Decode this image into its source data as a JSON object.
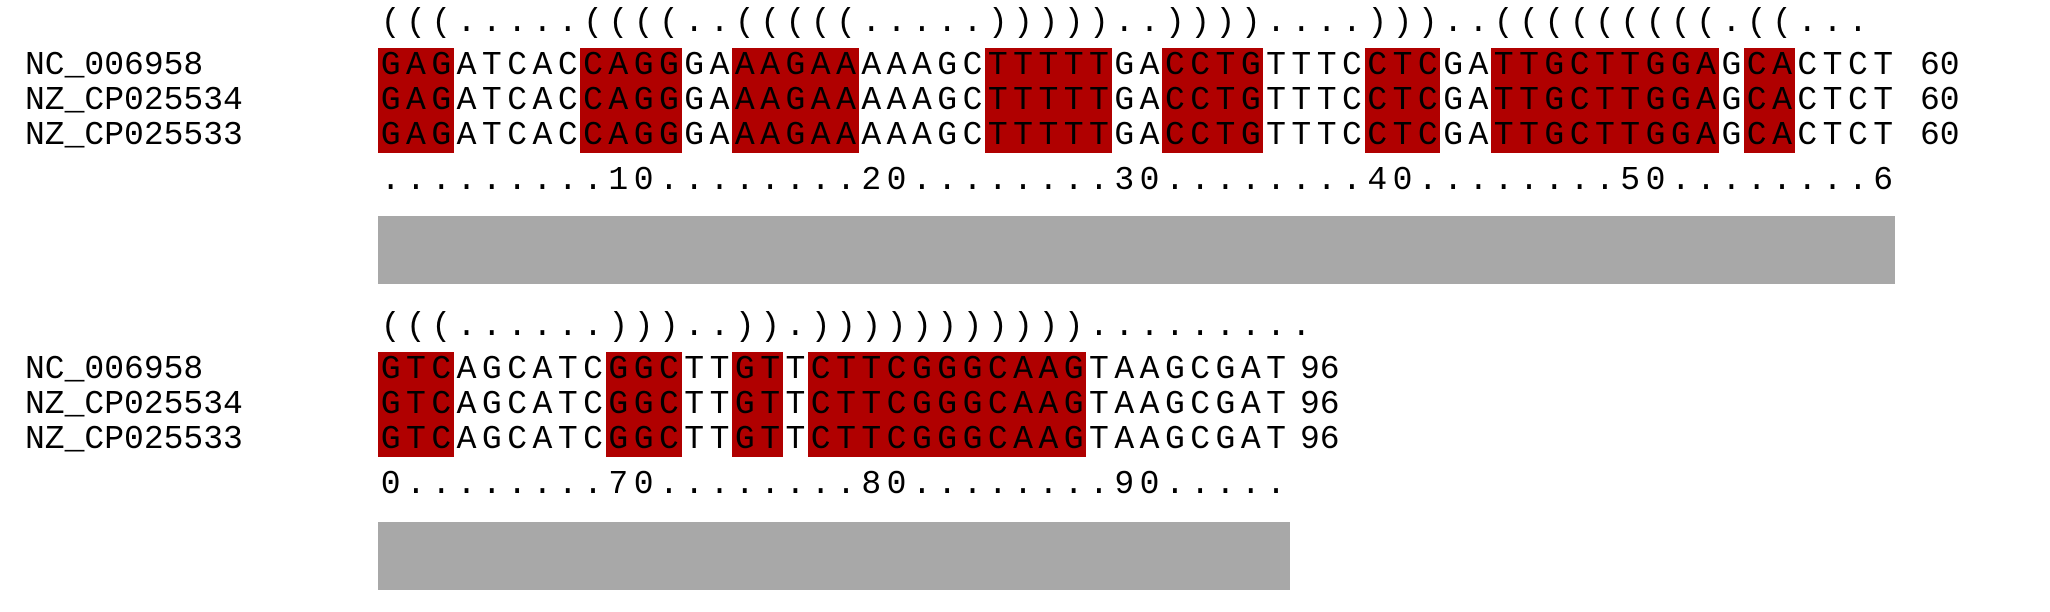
{
  "colors": {
    "paired_highlight": "#b00000",
    "conservation_bar": "#a8a8a8",
    "text": "#000000",
    "background": "#ffffff"
  },
  "blocks": [
    {
      "structure": "(((.....((((..(((((.....)))))..))))....)))..(((((((((.((...",
      "ruler": ".........10........20........30........40........50........6",
      "sequences": [
        {
          "name": "NC_006958",
          "seq": "GAGATCACCAGGGAAAGAAAAAGCTTTTTGACCTGTTTCCTCGATTGCTTGGAGCACTCT",
          "count": "60"
        },
        {
          "name": "NZ_CP025534",
          "seq": "GAGATCACCAGGGAAAGAAAAAGCTTTTTGACCTGTTTCCTCGATTGCTTGGAGCACTCT",
          "count": "60"
        },
        {
          "name": "NZ_CP025533",
          "seq": "GAGATCACCAGGGAAAGAAAAAGCTTTTTGACCTGTTTCCTCGATTGCTTGGAGCACTCT",
          "count": "60"
        }
      ]
    },
    {
      "structure": "(((......)))..)).))))))))))).........",
      "ruler": "0........70........80........90.....",
      "sequences": [
        {
          "name": "NC_006958",
          "seq": "GTCAGCATCGGCTTGTTCTTCGGGCAAGTAAGCGAT",
          "count": "96"
        },
        {
          "name": "NZ_CP025534",
          "seq": "GTCAGCATCGGCTTGTTCTTCGGGCAAGTAAGCGAT",
          "count": "96"
        },
        {
          "name": "NZ_CP025533",
          "seq": "GTCAGCATCGGCTTGTTCTTCGGGCAAGTAAGCGAT",
          "count": "96"
        }
      ]
    }
  ]
}
